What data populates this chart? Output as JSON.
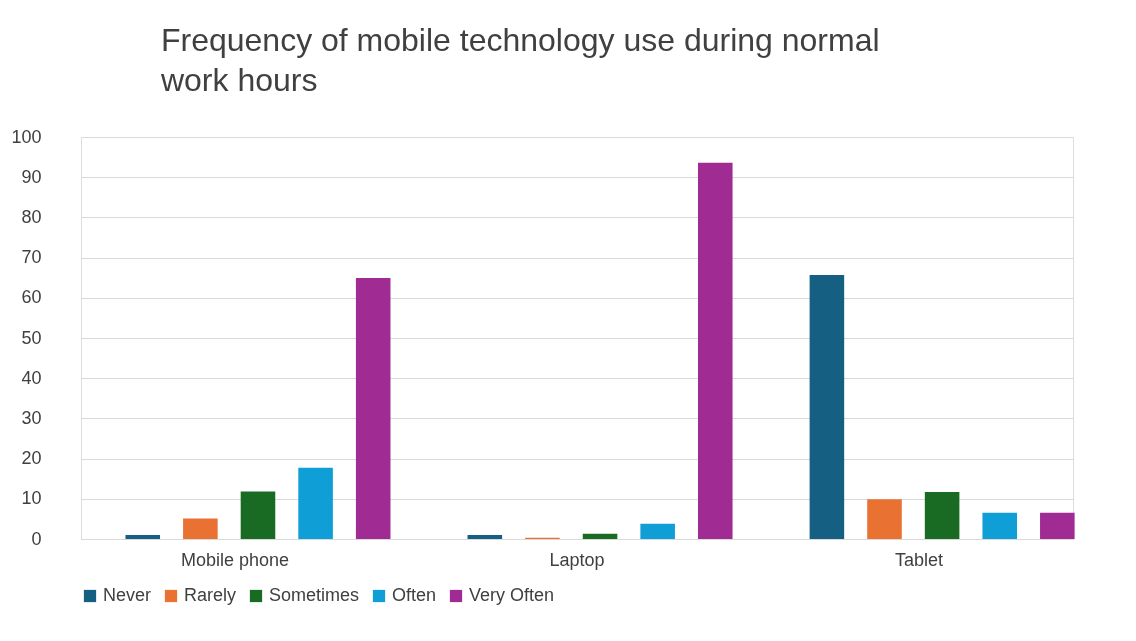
{
  "chart_data": {
    "type": "bar",
    "title": "Frequency of mobile technology use during normal work hours",
    "categories": [
      "Mobile phone",
      "Laptop",
      "Tablet"
    ],
    "series": [
      {
        "name": "Never",
        "color": "#156082",
        "values": [
          1,
          1,
          65.7
        ]
      },
      {
        "name": "Rarely",
        "color": "#e97132",
        "values": [
          5.1,
          0.3,
          9.9
        ]
      },
      {
        "name": "Sometimes",
        "color": "#196b24",
        "values": [
          11.8,
          1.3,
          11.7
        ]
      },
      {
        "name": "Often",
        "color": "#0f9ed5",
        "values": [
          17.7,
          3.8,
          6.5
        ]
      },
      {
        "name": "Very Often",
        "color": "#a02b93",
        "values": [
          64.9,
          93.6,
          6.5
        ]
      }
    ],
    "ylim": [
      0,
      100
    ],
    "yticks": [
      0,
      10,
      20,
      30,
      40,
      50,
      60,
      70,
      80,
      90,
      100
    ],
    "grid": "y",
    "legend": "bottom"
  }
}
